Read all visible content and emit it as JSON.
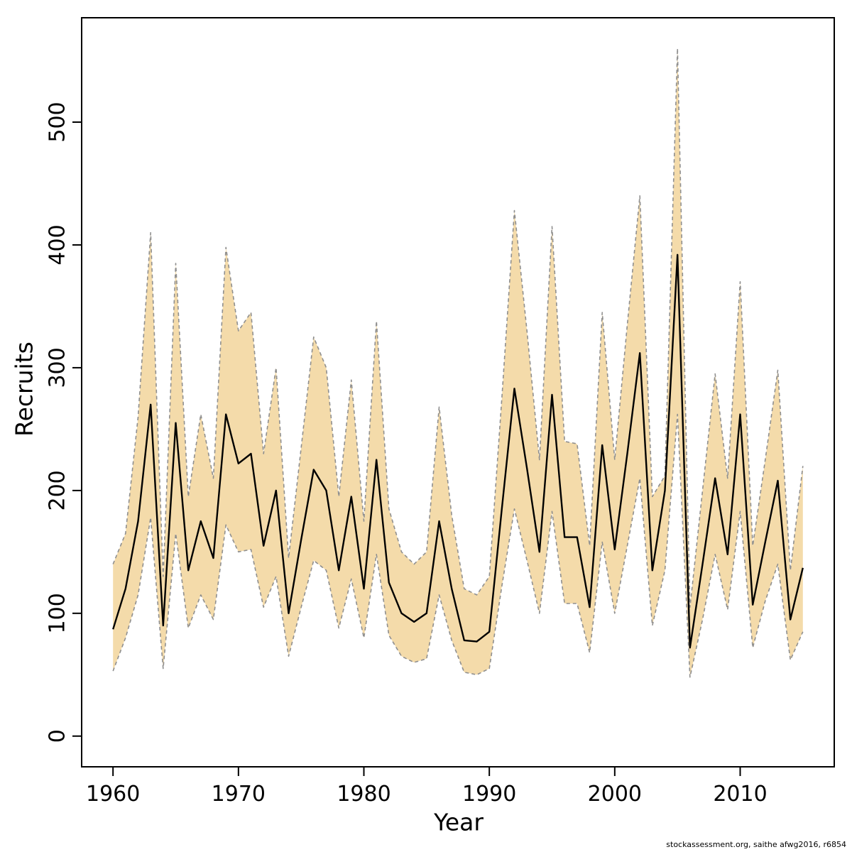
{
  "footer": {
    "text": "stockassessment.org, saithe  afwg2016, r6854"
  },
  "chart_data": {
    "type": "line",
    "title": "",
    "xlabel": "Year",
    "ylabel": "Recruits",
    "legend": "none",
    "grid": false,
    "x_ticks": [
      1960,
      1970,
      1980,
      1990,
      2000,
      2010
    ],
    "y_ticks": [
      0,
      100,
      200,
      300,
      400,
      500
    ],
    "xlim": [
      1957.5,
      2017.5
    ],
    "ylim": [
      -25,
      585
    ],
    "band_fill": "#f4dbaa",
    "band_border": "#8f8f8f",
    "line_color": "#000000",
    "years": [
      1960,
      1961,
      1962,
      1963,
      1964,
      1965,
      1966,
      1967,
      1968,
      1969,
      1970,
      1971,
      1972,
      1973,
      1974,
      1975,
      1976,
      1977,
      1978,
      1979,
      1980,
      1981,
      1982,
      1983,
      1984,
      1985,
      1986,
      1987,
      1988,
      1989,
      1990,
      1991,
      1992,
      1993,
      1994,
      1995,
      1996,
      1997,
      1998,
      1999,
      2000,
      2001,
      2002,
      2003,
      2004,
      2005,
      2006,
      2007,
      2008,
      2009,
      2010,
      2011,
      2012,
      2013,
      2014,
      2015
    ],
    "series": [
      {
        "name": "recruits_median",
        "values": [
          87,
          120,
          175,
          270,
          90,
          255,
          135,
          175,
          145,
          262,
          222,
          230,
          155,
          200,
          100,
          160,
          217,
          200,
          135,
          195,
          120,
          225,
          125,
          100,
          93,
          100,
          175,
          120,
          78,
          77,
          85,
          185,
          283,
          218,
          150,
          278,
          162,
          162,
          105,
          237,
          152,
          230,
          312,
          135,
          200,
          392,
          72,
          140,
          210,
          148,
          262,
          107,
          158,
          208,
          95,
          137
        ]
      },
      {
        "name": "ci_upper",
        "values": [
          140,
          165,
          260,
          410,
          130,
          385,
          195,
          262,
          210,
          398,
          330,
          345,
          230,
          300,
          145,
          235,
          325,
          300,
          195,
          290,
          175,
          338,
          185,
          150,
          140,
          150,
          268,
          180,
          120,
          115,
          130,
          275,
          428,
          330,
          225,
          415,
          240,
          238,
          155,
          345,
          225,
          335,
          440,
          195,
          212,
          560,
          105,
          200,
          295,
          210,
          370,
          155,
          225,
          298,
          135,
          220
        ]
      },
      {
        "name": "ci_lower",
        "values": [
          53,
          80,
          115,
          178,
          55,
          165,
          88,
          115,
          95,
          172,
          150,
          152,
          105,
          130,
          65,
          105,
          143,
          135,
          88,
          128,
          80,
          148,
          82,
          65,
          60,
          63,
          115,
          78,
          52,
          50,
          55,
          122,
          185,
          143,
          100,
          183,
          108,
          108,
          68,
          158,
          100,
          155,
          210,
          90,
          135,
          262,
          48,
          95,
          148,
          103,
          183,
          72,
          110,
          140,
          62,
          85
        ]
      }
    ]
  }
}
